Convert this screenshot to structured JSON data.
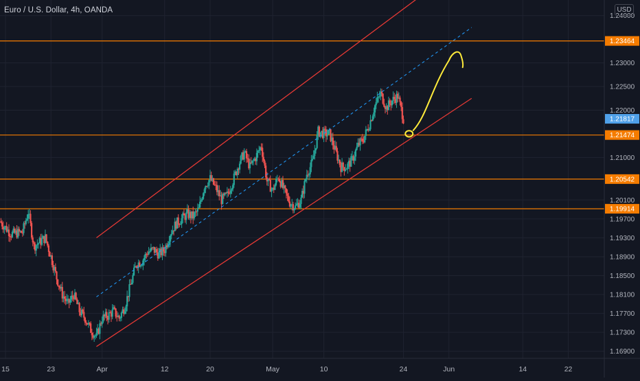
{
  "header": {
    "symbol_title": "Euro / U.S. Dollar, 4h, OANDA",
    "currency_button": "USD"
  },
  "chart_data": {
    "type": "candlestick",
    "instrument": "Euro / U.S. Dollar",
    "timeframe": "4h",
    "source": "OANDA",
    "ylim": [
      1.1675,
      1.2433
    ],
    "y_ticks": [
      "1.24000",
      "1.23000",
      "1.22500",
      "1.22000",
      "1.21000",
      "1.20100",
      "1.19700",
      "1.19300",
      "1.18900",
      "1.18500",
      "1.18100",
      "1.17700",
      "1.17300",
      "1.16900"
    ],
    "x_ticks": [
      "15",
      "23",
      "Apr",
      "12",
      "20",
      "May",
      "10",
      "24",
      "Jun",
      "14",
      "22"
    ],
    "grid": true,
    "current_price": "1.21817",
    "colors": {
      "background": "#131722",
      "bullish": "#26a69a",
      "bearish": "#ef5350",
      "horizontal_levels": "#f57c00",
      "channel": "#e53935",
      "midline": "#2196f3",
      "projection": "#ffeb3b",
      "current_price_label": "#4fa0e8"
    },
    "horizontal_levels": [
      {
        "price": 1.23464,
        "label": "1.23464"
      },
      {
        "price": 1.21474,
        "label": "1.21474"
      },
      {
        "price": 1.20542,
        "label": "1.20542"
      },
      {
        "price": 1.19914,
        "label": "1.19914"
      }
    ],
    "channel": {
      "upper": [
        [
          "Mar 31",
          1.193
        ],
        [
          "May 28",
          1.245
        ]
      ],
      "lower": [
        [
          "Mar 31",
          1.17
        ],
        [
          "Jun 5",
          1.2225
        ]
      ],
      "midline": [
        [
          "Mar 31",
          1.1805
        ],
        [
          "Jun 5",
          1.2375
        ]
      ]
    },
    "projection": {
      "circle_at": [
        "May 25",
        1.215
      ],
      "path_to": [
        "Jun 1",
        1.2305
      ]
    },
    "price_path": [
      [
        "Mar 14",
        1.1965
      ],
      [
        "Mar 16",
        1.1938
      ],
      [
        "Mar 18",
        1.1942
      ],
      [
        "Mar 19",
        1.1985
      ],
      [
        "Mar 20",
        1.1912
      ],
      [
        "Mar 22",
        1.193
      ],
      [
        "Mar 23",
        1.189
      ],
      [
        "Mar 24",
        1.1845
      ],
      [
        "Mar 25",
        1.181
      ],
      [
        "Mar 26",
        1.179
      ],
      [
        "Mar 27",
        1.181
      ],
      [
        "Mar 28",
        1.1775
      ],
      [
        "Mar 29",
        1.176
      ],
      [
        "Mar 30",
        1.1735
      ],
      [
        "Mar 31",
        1.172
      ],
      [
        "Apr 1",
        1.176
      ],
      [
        "Apr 2",
        1.1765
      ],
      [
        "Apr 3",
        1.1775
      ],
      [
        "Apr 4",
        1.176
      ],
      [
        "Apr 5",
        1.1785
      ],
      [
        "Apr 6",
        1.183
      ],
      [
        "Apr 7",
        1.1875
      ],
      [
        "Apr 8",
        1.188
      ],
      [
        "Apr 9",
        1.19
      ],
      [
        "Apr 10",
        1.1905
      ],
      [
        "Apr 11",
        1.1895
      ],
      [
        "Apr 12",
        1.1905
      ],
      [
        "Apr 13",
        1.194
      ],
      [
        "Apr 14",
        1.196
      ],
      [
        "Apr 15",
        1.197
      ],
      [
        "Apr 16",
        1.198
      ],
      [
        "Apr 17",
        1.1975
      ],
      [
        "Apr 18",
        1.199
      ],
      [
        "Apr 19",
        1.204
      ],
      [
        "Apr 20",
        1.2055
      ],
      [
        "Apr 21",
        1.2035
      ],
      [
        "Apr 22",
        1.201
      ],
      [
        "Apr 23",
        1.202
      ],
      [
        "Apr 24",
        1.205
      ],
      [
        "Apr 25",
        1.2085
      ],
      [
        "Apr 26",
        1.211
      ],
      [
        "Apr 27",
        1.208
      ],
      [
        "Apr 28",
        1.21
      ],
      [
        "Apr 29",
        1.2125
      ],
      [
        "Apr 30",
        1.205
      ],
      [
        "May 1",
        1.203
      ],
      [
        "May 2",
        1.206
      ],
      [
        "May 3",
        1.203
      ],
      [
        "May 4",
        1.2005
      ],
      [
        "May 5",
        1.1995
      ],
      [
        "May 6",
        1.201
      ],
      [
        "May 7",
        1.2065
      ],
      [
        "May 8",
        1.209
      ],
      [
        "May 9",
        1.2155
      ],
      [
        "May 10",
        1.215
      ],
      [
        "May 11",
        1.215
      ],
      [
        "May 12",
        1.2115
      ],
      [
        "May 13",
        1.208
      ],
      [
        "May 14",
        1.208
      ],
      [
        "May 15",
        1.2095
      ],
      [
        "May 16",
        1.2125
      ],
      [
        "May 17",
        1.214
      ],
      [
        "May 18",
        1.217
      ],
      [
        "May 19",
        1.221
      ],
      [
        "May 20",
        1.2235
      ],
      [
        "May 21",
        1.2205
      ],
      [
        "May 22",
        1.222
      ],
      [
        "May 23",
        1.223
      ],
      [
        "May 24",
        1.2182
      ]
    ]
  }
}
